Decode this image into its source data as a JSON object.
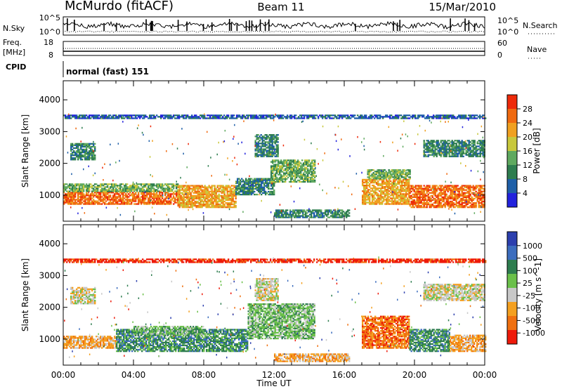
{
  "header": {
    "site": "McMurdo (fitACF)",
    "beam": "Beam 11",
    "date": "15/Mar/2010"
  },
  "side_labels": {
    "nsky": "N.Sky",
    "freq_line1": "Freq.",
    "freq_line2": "[MHz]",
    "cpid": "CPID",
    "nsearch": "N.Search",
    "nave": "Nave"
  },
  "cpid_text": "normal (fast) 151",
  "noise_panel": {
    "left_ticks": [
      "10^5",
      "10^0"
    ],
    "right_ticks": [
      "10^5",
      "10^0"
    ]
  },
  "freq_panel": {
    "left_ticks": [
      "18",
      "8"
    ],
    "right_ticks": [
      "60",
      "0"
    ]
  },
  "colors": {
    "power": [
      "#2222dd",
      "#1e5fa8",
      "#2e7d4f",
      "#5fa95f",
      "#c8c83c",
      "#f0a020",
      "#f06a10",
      "#ee2a0a"
    ],
    "velocity": [
      "#2c3fae",
      "#3c6dbe",
      "#2e7d4f",
      "#6bc04a",
      "#c8c8c8",
      "#f4a020",
      "#f07010",
      "#ee1a0a"
    ]
  },
  "chart_data": [
    {
      "type": "heatmap",
      "title": "Beam 11",
      "xlabel": "Time UT",
      "ylabel": "Slant Range [km]",
      "x_ticks": [
        "00:00",
        "04:00",
        "08:00",
        "12:00",
        "16:00",
        "20:00",
        "00:00"
      ],
      "y_ticks": [
        "1000",
        "2000",
        "3000",
        "4000"
      ],
      "y_tick_values": [
        1000,
        2000,
        3000,
        4000
      ],
      "ylim": [
        180,
        4600
      ],
      "xlim_hours": [
        0,
        24
      ],
      "colorbar_label": "Power [dB]",
      "colorbar_ticks": [
        "4",
        "8",
        "12",
        "16",
        "20",
        "24",
        "28"
      ],
      "colorbar_range": [
        0,
        32
      ],
      "regions": [
        {
          "t0": 0.0,
          "t1": 6.5,
          "r0": 700,
          "r1": 1100,
          "level": 6
        },
        {
          "t0": 0.0,
          "t1": 6.5,
          "r0": 1100,
          "r1": 1350,
          "level": 3
        },
        {
          "t0": 6.5,
          "t1": 9.8,
          "r0": 600,
          "r1": 1300,
          "level": 5
        },
        {
          "t0": 9.8,
          "t1": 12.0,
          "r0": 1000,
          "r1": 1500,
          "level": 2
        },
        {
          "t0": 11.8,
          "t1": 14.3,
          "r0": 1400,
          "r1": 2100,
          "level": 3
        },
        {
          "t0": 12.0,
          "t1": 16.3,
          "r0": 280,
          "r1": 520,
          "level": 2
        },
        {
          "t0": 0.4,
          "t1": 1.8,
          "r0": 2100,
          "r1": 2600,
          "level": 2
        },
        {
          "t0": 10.9,
          "t1": 12.2,
          "r0": 2200,
          "r1": 2900,
          "level": 2
        },
        {
          "t0": 17.0,
          "t1": 19.7,
          "r0": 700,
          "r1": 1500,
          "level": 5
        },
        {
          "t0": 17.3,
          "t1": 19.7,
          "r0": 1500,
          "r1": 1800,
          "level": 3
        },
        {
          "t0": 19.7,
          "t1": 24.0,
          "r0": 600,
          "r1": 1300,
          "level": 6
        },
        {
          "t0": 20.5,
          "t1": 24.0,
          "r0": 2200,
          "r1": 2700,
          "level": 2
        },
        {
          "t0": 0.0,
          "t1": 24.0,
          "r0": 3400,
          "r1": 3520,
          "level": 1
        }
      ]
    },
    {
      "type": "heatmap",
      "xlabel": "Time UT",
      "ylabel": "Slant Range [km]",
      "x_ticks": [
        "00:00",
        "04:00",
        "08:00",
        "12:00",
        "16:00",
        "20:00",
        "00:00"
      ],
      "y_ticks": [
        "1000",
        "2000",
        "3000",
        "4000"
      ],
      "y_tick_values": [
        1000,
        2000,
        3000,
        4000
      ],
      "ylim": [
        180,
        4600
      ],
      "xlim_hours": [
        0,
        24
      ],
      "colorbar_label": "Velocity [m s^-1]",
      "colorbar_ticks": [
        "1000",
        "500",
        "100",
        "25",
        "-25",
        "-100",
        "-500",
        "-1000"
      ],
      "regions": [
        {
          "t0": 0.0,
          "t1": 3.0,
          "r0": 700,
          "r1": 1100,
          "level": 5
        },
        {
          "t0": 3.0,
          "t1": 10.5,
          "r0": 600,
          "r1": 1300,
          "level": 2
        },
        {
          "t0": 4.0,
          "t1": 8.0,
          "r0": 1100,
          "r1": 1400,
          "level": 3
        },
        {
          "t0": 10.5,
          "t1": 14.3,
          "r0": 1000,
          "r1": 2100,
          "level": 3
        },
        {
          "t0": 12.0,
          "t1": 16.3,
          "r0": 280,
          "r1": 520,
          "level": 5
        },
        {
          "t0": 0.4,
          "t1": 1.8,
          "r0": 2100,
          "r1": 2600,
          "level": 4
        },
        {
          "t0": 10.9,
          "t1": 12.2,
          "r0": 2200,
          "r1": 2900,
          "level": 4
        },
        {
          "t0": 17.0,
          "t1": 19.7,
          "r0": 700,
          "r1": 1700,
          "level": 6
        },
        {
          "t0": 19.7,
          "t1": 22.0,
          "r0": 600,
          "r1": 1300,
          "level": 2
        },
        {
          "t0": 22.0,
          "t1": 24.0,
          "r0": 600,
          "r1": 1100,
          "level": 5
        },
        {
          "t0": 20.5,
          "t1": 24.0,
          "r0": 2200,
          "r1": 2700,
          "level": 4
        },
        {
          "t0": 0.0,
          "t1": 24.0,
          "r0": 3400,
          "r1": 3520,
          "level": 7
        }
      ]
    }
  ]
}
